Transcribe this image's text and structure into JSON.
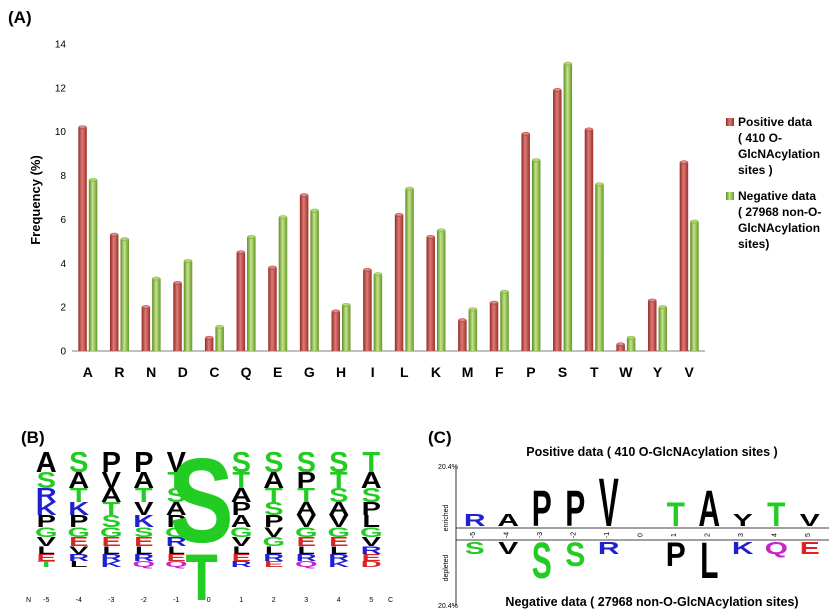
{
  "panels": {
    "a_label": "(A)",
    "b_label": "(B)",
    "c_label": "(C)"
  },
  "chart_data": {
    "type": "bar",
    "categories": [
      "A",
      "R",
      "N",
      "D",
      "C",
      "Q",
      "E",
      "G",
      "H",
      "I",
      "L",
      "K",
      "M",
      "F",
      "P",
      "S",
      "T",
      "W",
      "Y",
      "V"
    ],
    "series": [
      {
        "name": "Positive data ( 410 O-GlcNAcylation sites )",
        "legend_lines": [
          "Positive data",
          "( 410 O-",
          "GlcNAcylation",
          "sites )"
        ],
        "color": "#c0504d",
        "values": [
          10.2,
          5.3,
          2.0,
          3.1,
          0.6,
          4.5,
          3.8,
          7.1,
          1.8,
          3.7,
          6.2,
          5.2,
          1.4,
          2.2,
          9.9,
          11.9,
          10.1,
          0.3,
          2.3,
          8.6
        ]
      },
      {
        "name": "Negative data ( 27968 non-O-GlcNAcylation sites)",
        "legend_lines": [
          "Negative data",
          "( 27968 non-O-",
          "GlcNAcylation",
          "sites)"
        ],
        "color": "#8cbf3f",
        "values": [
          7.8,
          5.1,
          3.3,
          4.1,
          1.1,
          5.2,
          6.1,
          6.4,
          2.1,
          3.5,
          7.4,
          5.5,
          1.9,
          2.7,
          8.7,
          13.1,
          7.6,
          0.6,
          2.0,
          5.9
        ]
      }
    ],
    "ylabel": "Frequency  (%)",
    "xlabel": "",
    "ylim": [
      0,
      14
    ],
    "yticks": [
      "0",
      "2",
      "4",
      "6",
      "8",
      "10",
      "12",
      "14"
    ],
    "legend_position": "right"
  },
  "logo_b": {
    "x_ticks": [
      "-5",
      "-4",
      "-3",
      "-2",
      "-1",
      "0",
      "1",
      "2",
      "3",
      "4",
      "5"
    ],
    "n_label": "N",
    "c_label": "C",
    "center_residue": "S",
    "center_residue_2": "T",
    "rows": [
      [
        "A",
        "S",
        "P",
        "P",
        "V",
        "",
        "S",
        "S",
        "S",
        "S",
        "T"
      ],
      [
        "S",
        "A",
        "V",
        "A",
        "T",
        "",
        "T",
        "A",
        "P",
        "T",
        "A"
      ],
      [
        "R",
        "T",
        "A",
        "T",
        "S",
        "",
        "A",
        "T",
        "T",
        "S",
        "S"
      ],
      [
        "K",
        "K",
        "T",
        "V",
        "A",
        "",
        "P",
        "S",
        "A",
        "A",
        "P"
      ],
      [
        "P",
        "P",
        "S",
        "K",
        "P",
        "",
        "A",
        "P",
        "V",
        "V",
        "L"
      ],
      [
        "G",
        "G",
        "G",
        "S",
        "G",
        "",
        "G",
        "V",
        "G",
        "G",
        "G"
      ],
      [
        "V",
        "E",
        "E",
        "E",
        "R",
        "",
        "V",
        "G",
        "E",
        "E",
        "V"
      ],
      [
        "L",
        "V",
        "L",
        "L",
        "L",
        "",
        "L",
        "L",
        "L",
        "L",
        "R"
      ],
      [
        "E",
        "R",
        "R",
        "R",
        "E",
        "",
        "E",
        "R",
        "R",
        "R",
        "E"
      ],
      [
        "T",
        "L",
        "K",
        "Q",
        "Q",
        "",
        "R",
        "E",
        "Q",
        "K",
        "D"
      ]
    ]
  },
  "logo_c": {
    "title_top": "Positive data ( 410 O-GlcNAcylation sites )",
    "title_bottom": "Negative data ( 27968 non-O-GlcNAcylation sites)",
    "y_top": "20.4%",
    "y_bottom": "20.4%",
    "enriched": "enriched",
    "depleted": "depleted",
    "x_ticks": [
      "-5",
      "-4",
      "-3",
      "-2",
      "-1",
      "0",
      "1",
      "2",
      "3",
      "4",
      "5"
    ],
    "enriched_letters": [
      {
        "pos": "-5",
        "letter": "R",
        "color": "#2020d0",
        "size": 1
      },
      {
        "pos": "-4",
        "letter": "A",
        "color": "#000000",
        "size": 1
      },
      {
        "pos": "-3",
        "letter": "P",
        "color": "#000000",
        "size": 3
      },
      {
        "pos": "-2",
        "letter": "P",
        "color": "#000000",
        "size": 3
      },
      {
        "pos": "-1",
        "letter": "V",
        "color": "#000000",
        "size": 4
      },
      {
        "pos": "1",
        "letter": "T",
        "color": "#22cc22",
        "size": 2
      },
      {
        "pos": "2",
        "letter": "A",
        "color": "#000000",
        "size": 3
      },
      {
        "pos": "3",
        "letter": "Y",
        "color": "#000000",
        "size": 1
      },
      {
        "pos": "4",
        "letter": "T",
        "color": "#22cc22",
        "size": 2
      },
      {
        "pos": "5",
        "letter": "V",
        "color": "#000000",
        "size": 1
      }
    ],
    "depleted_letters": [
      {
        "pos": "-5",
        "letter": "S",
        "color": "#22cc22",
        "size": 1
      },
      {
        "pos": "-4",
        "letter": "V",
        "color": "#000000",
        "size": 1
      },
      {
        "pos": "-3",
        "letter": "S",
        "color": "#22cc22",
        "size": 3
      },
      {
        "pos": "-2",
        "letter": "S",
        "color": "#22cc22",
        "size": 2
      },
      {
        "pos": "-1",
        "letter": "R",
        "color": "#2020d0",
        "size": 1
      },
      {
        "pos": "1",
        "letter": "P",
        "color": "#000000",
        "size": 2
      },
      {
        "pos": "2",
        "letter": "L",
        "color": "#000000",
        "size": 3
      },
      {
        "pos": "3",
        "letter": "K",
        "color": "#2020d0",
        "size": 1
      },
      {
        "pos": "4",
        "letter": "Q",
        "color": "#cc22cc",
        "size": 1
      },
      {
        "pos": "5",
        "letter": "E",
        "color": "#dd2222",
        "size": 1
      }
    ]
  }
}
